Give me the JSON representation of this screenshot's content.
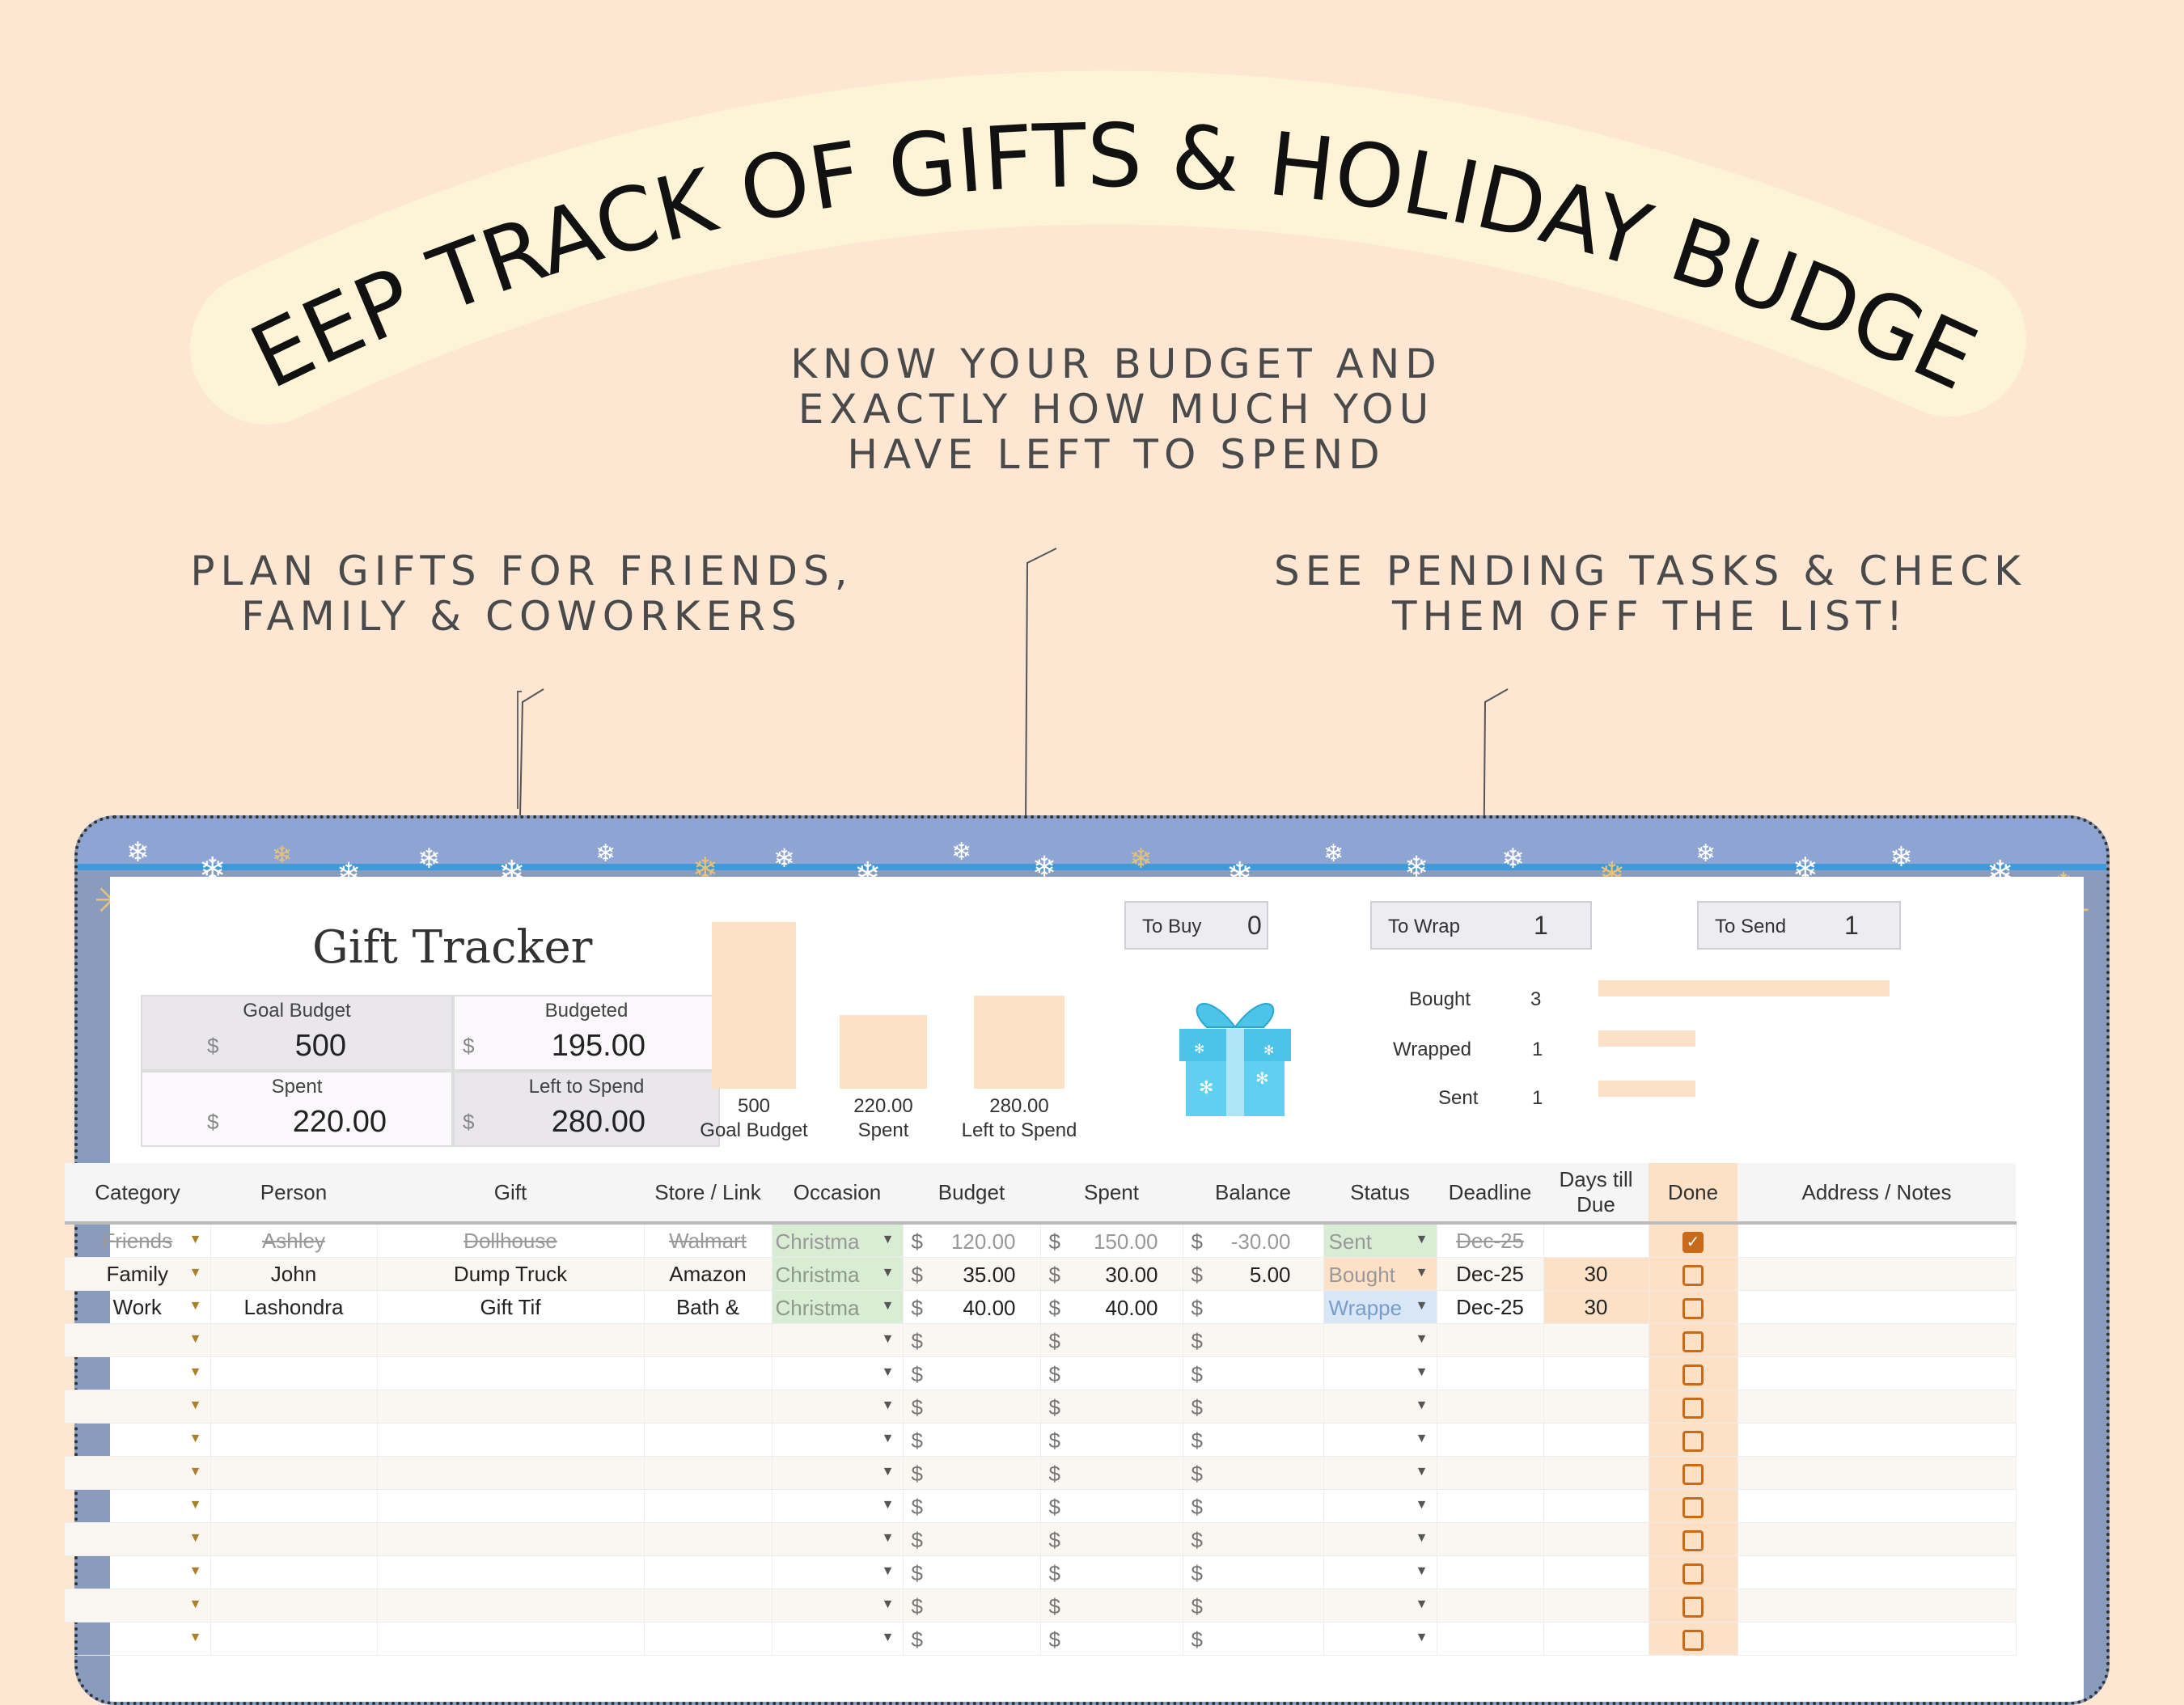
{
  "headline": "KEEP TRACK OF GIFTS & HOLIDAY BUDGET",
  "callouts": {
    "center": "KNOW YOUR BUDGET AND\nEXACTLY HOW MUCH YOU\nHAVE LEFT TO SPEND",
    "left": "PLAN GIFTS FOR  FRIENDS,\nFAMILY & COWORKERS",
    "right": "SEE PENDING TASKS & CHECK\nTHEM OFF THE LIST!"
  },
  "colors": {
    "background": "#fde7d3",
    "banner": "#fdf3d6",
    "bar": "#fde1c7",
    "accent": "#c96a1b",
    "frame": "#8a9cbe"
  },
  "sheet": {
    "title": "Gift Tracker",
    "summary": [
      {
        "label": "Goal Budget",
        "currency": "$",
        "value": "500"
      },
      {
        "label": "Budgeted",
        "currency": "$",
        "value": "195.00"
      },
      {
        "label": "Spent",
        "currency": "$",
        "value": "220.00"
      },
      {
        "label": "Left to Spend",
        "currency": "$",
        "value": "280.00"
      }
    ],
    "chart_data": {
      "type": "bar",
      "categories": [
        "Goal Budget",
        "Spent",
        "Left to Spend"
      ],
      "values": [
        500,
        220,
        280
      ],
      "value_labels": [
        "500",
        "220.00",
        "280.00"
      ],
      "ylim": [
        0,
        500
      ]
    },
    "tasks": [
      {
        "label": "To Buy",
        "count": "0"
      },
      {
        "label": "To Wrap",
        "count": "1"
      },
      {
        "label": "To Send",
        "count": "1"
      }
    ],
    "progress": [
      {
        "label": "Bought",
        "count": "3",
        "value": 3
      },
      {
        "label": "Wrapped",
        "count": "1",
        "value": 1
      },
      {
        "label": "Sent",
        "count": "1",
        "value": 1
      }
    ],
    "gift_icon": "gift-box-icon",
    "columns": [
      "Category",
      "Person",
      "Gift",
      "Store / Link",
      "Occasion",
      "Budget",
      "Spent",
      "Balance",
      "Status",
      "Deadline",
      "Days till Due",
      "Done",
      "Address / Notes"
    ],
    "currency": "$",
    "rows": [
      {
        "category": "Friends",
        "person": "Ashley",
        "gift": "Dollhouse",
        "store": "Walmart",
        "occasion": "Christma",
        "budget": "120.00",
        "spent": "150.00",
        "balance": "-30.00",
        "status": "Sent",
        "deadline": "Dec-25",
        "days": "",
        "done": true,
        "strike": true
      },
      {
        "category": "Family",
        "person": "John",
        "gift": "Dump Truck",
        "store": "Amazon",
        "occasion": "Christma",
        "budget": "35.00",
        "spent": "30.00",
        "balance": "5.00",
        "status": "Bought",
        "deadline": "Dec-25",
        "days": "30",
        "done": false,
        "strike": false
      },
      {
        "category": "Work",
        "person": "Lashondra",
        "gift": "Gift Tif",
        "store": "Bath &",
        "occasion": "Christma",
        "budget": "40.00",
        "spent": "40.00",
        "balance": "",
        "status": "Wrappe",
        "deadline": "Dec-25",
        "days": "30",
        "done": false,
        "strike": false
      }
    ],
    "empty_rows": 10
  }
}
